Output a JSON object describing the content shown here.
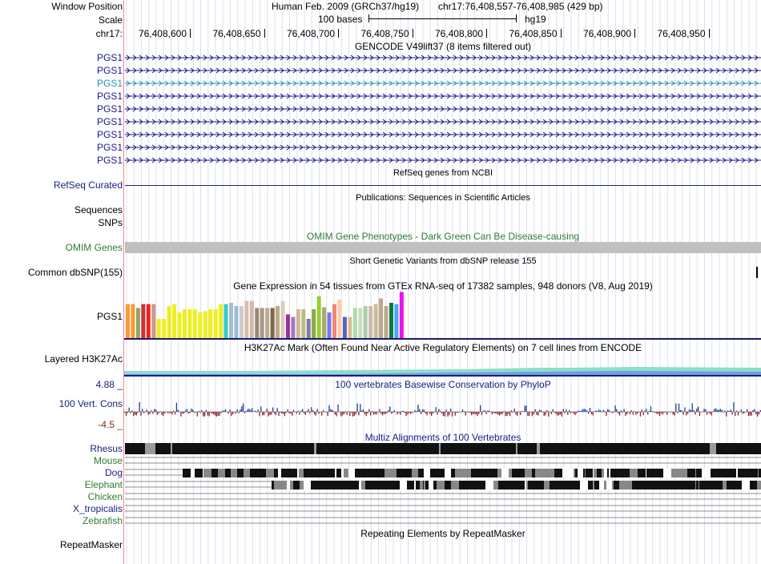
{
  "header": {
    "window_position_label": "Window Position",
    "scale_label": "Scale",
    "chrom_label": "chr17:",
    "assembly": "Human Feb. 2009 (GRCh37/hg19)",
    "position": "chr17:76,408,557-76,408,985 (429 bp)",
    "scale_text": "100 bases",
    "db": "hg19",
    "ticks": [
      "76,408,600",
      "76,408,650",
      "76,408,700",
      "76,408,750",
      "76,408,800",
      "76,408,850",
      "76,408,900",
      "76,408,950"
    ]
  },
  "gencode": {
    "title": "GENCODE V49lift37 (8 items filtered out)",
    "genes": [
      "PGS1",
      "PGS1",
      "PGS1",
      "PGS1",
      "PGS1",
      "PGS1",
      "PGS1",
      "PGS1",
      "PGS1"
    ],
    "highlight_index": 2
  },
  "refseq": {
    "title": "RefSeq genes from NCBI",
    "label": "RefSeq Curated"
  },
  "pubs": {
    "title": "Publications: Sequences in Scientific Articles",
    "label_1": "Sequences",
    "label_2": "SNPs"
  },
  "omim": {
    "title": "OMIM Gene Phenotypes - Dark Green Can Be Disease-causing",
    "label": "OMIM Genes"
  },
  "dbsnp": {
    "title": "Short Genetic Variants from dbSNP release 155",
    "label": "Common dbSNP(155)"
  },
  "gtex": {
    "title": "Gene Expression in 54 tissues from GTEx RNA-seq of 17382 samples, 948 donors (V8, Aug 2019)",
    "label": "PGS1",
    "bars": [
      {
        "v": 0.53,
        "c": "#ff9933"
      },
      {
        "v": 0.53,
        "c": "#ff9933"
      },
      {
        "v": 0.47,
        "c": "#88aa66"
      },
      {
        "v": 0.53,
        "c": "#cc3333"
      },
      {
        "v": 0.53,
        "c": "#ee2222"
      },
      {
        "v": 0.53,
        "c": "#cc9988"
      },
      {
        "v": 0.3,
        "c": "#eeee22"
      },
      {
        "v": 0.3,
        "c": "#eeee22"
      },
      {
        "v": 0.5,
        "c": "#eeee22"
      },
      {
        "v": 0.53,
        "c": "#eeee22"
      },
      {
        "v": 0.4,
        "c": "#eeee22"
      },
      {
        "v": 0.45,
        "c": "#eeee22"
      },
      {
        "v": 0.45,
        "c": "#eeee22"
      },
      {
        "v": 0.45,
        "c": "#eeee22"
      },
      {
        "v": 0.4,
        "c": "#eeee22"
      },
      {
        "v": 0.42,
        "c": "#eeee22"
      },
      {
        "v": 0.45,
        "c": "#eeee22"
      },
      {
        "v": 0.45,
        "c": "#eeee22"
      },
      {
        "v": 0.53,
        "c": "#eeee22"
      },
      {
        "v": 0.53,
        "c": "#33cccc"
      },
      {
        "v": 0.55,
        "c": "#aabbcc"
      },
      {
        "v": 0.5,
        "c": "#99bbdd"
      },
      {
        "v": 0.5,
        "c": "#cccccc"
      },
      {
        "v": 0.58,
        "c": "#ddbbaa"
      },
      {
        "v": 0.58,
        "c": "#ccbbaa"
      },
      {
        "v": 0.47,
        "c": "#998877"
      },
      {
        "v": 0.47,
        "c": "#aa9988"
      },
      {
        "v": 0.47,
        "c": "#bbaa99"
      },
      {
        "v": 0.47,
        "c": "#886644"
      },
      {
        "v": 0.5,
        "c": "#bbaa88"
      },
      {
        "v": 0.58,
        "c": "#ddccbb"
      },
      {
        "v": 0.37,
        "c": "#993399"
      },
      {
        "v": 0.33,
        "c": "#aa77bb"
      },
      {
        "v": 0.45,
        "c": "#ccbb99"
      },
      {
        "v": 0.45,
        "c": "#bbbb88"
      },
      {
        "v": 0.3,
        "c": "#8877aa"
      },
      {
        "v": 0.45,
        "c": "#88aa44"
      },
      {
        "v": 0.65,
        "c": "#99cc33"
      },
      {
        "v": 0.48,
        "c": "#aaaa66"
      },
      {
        "v": 0.4,
        "c": "#7777ee"
      },
      {
        "v": 0.53,
        "c": "#ee8877"
      },
      {
        "v": 0.6,
        "c": "#ffccaa"
      },
      {
        "v": 0.33,
        "c": "#5566bb"
      },
      {
        "v": 0.33,
        "c": "#ddbb99"
      },
      {
        "v": 0.47,
        "c": "#aaddaa"
      },
      {
        "v": 0.47,
        "c": "#ccddbb"
      },
      {
        "v": 0.5,
        "c": "#aaccaa"
      },
      {
        "v": 0.5,
        "c": "#ccbbaa"
      },
      {
        "v": 0.53,
        "c": "#ccbb99"
      },
      {
        "v": 0.62,
        "c": "#bbaa88"
      },
      {
        "v": 0.5,
        "c": "#bbaa88"
      },
      {
        "v": 0.55,
        "c": "#117744"
      },
      {
        "v": 0.53,
        "c": "#44aaee"
      },
      {
        "v": 0.72,
        "c": "#ee11ee"
      }
    ]
  },
  "h3k27ac": {
    "title": "H3K27Ac Mark (Often Found Near Active Regulatory Elements) on 7 cell lines from ENCODE",
    "label": "Layered H3K27Ac"
  },
  "cons": {
    "title": "100 vertebrates Basewise Conservation by PhyloP",
    "label": "100 Vert. Cons",
    "max": "4.88 _",
    "min": "-4.5 _",
    "color_pos": "#1f3f8f",
    "color_neg": "#8b2323"
  },
  "multiz": {
    "title": "Multiz Alignments of 100 Vertebrates",
    "species": [
      {
        "name": "Rhesus",
        "color": "#1a237e"
      },
      {
        "name": "Mouse",
        "color": "#2e7d32"
      },
      {
        "name": "Dog",
        "color": "#1a237e"
      },
      {
        "name": "Elephant",
        "color": "#2e7d32"
      },
      {
        "name": "Chicken",
        "color": "#2e7d32"
      },
      {
        "name": "X_tropicalis",
        "color": "#1a237e"
      },
      {
        "name": "Zebrafish",
        "color": "#2e7d32"
      }
    ]
  },
  "repeat": {
    "title": "Repeating Elements by RepeatMasker",
    "label": "RepeatMasker"
  },
  "colors": {
    "gene_blue": "#1a1a8c",
    "gene_highlight": "#2a8fb8",
    "track_blue": "#1a237e",
    "omim_green": "#2e7d32",
    "separator": "#f08a8a"
  }
}
